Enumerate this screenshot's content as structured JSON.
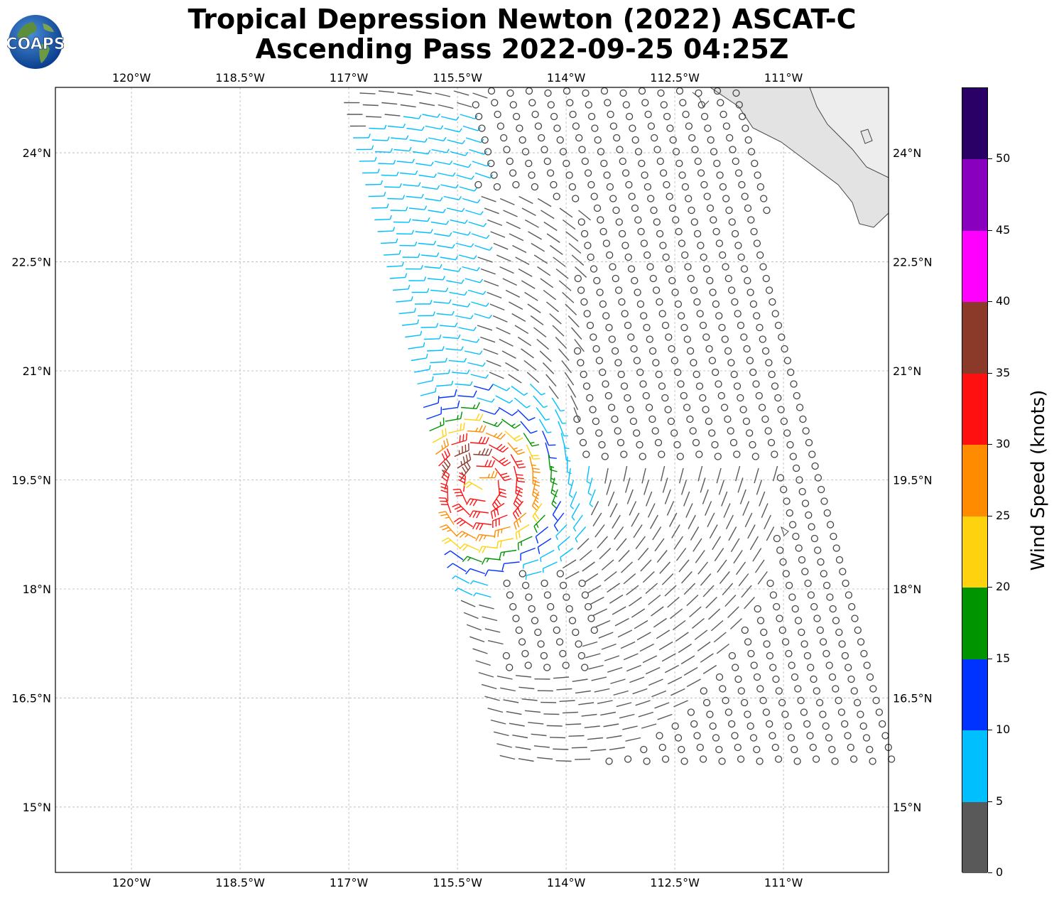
{
  "title": {
    "line1": "Tropical Depression Newton (2022) ASCAT-C",
    "line2": "Ascending Pass 2022-09-25 04:25Z"
  },
  "logo": {
    "text": "COAPS",
    "icon": "globe-logo-icon"
  },
  "map": {
    "lon_range": [
      -121.05,
      -109.55
    ],
    "lat_range": [
      14.1,
      24.9
    ],
    "lon_ticks": [
      {
        "value": -120,
        "label": "120°W"
      },
      {
        "value": -118.5,
        "label": "118.5°W"
      },
      {
        "value": -117,
        "label": "117°W"
      },
      {
        "value": -115.5,
        "label": "115.5°W"
      },
      {
        "value": -114,
        "label": "114°W"
      },
      {
        "value": -112.5,
        "label": "112.5°W"
      },
      {
        "value": -111,
        "label": "111°W"
      }
    ],
    "lat_ticks": [
      {
        "value": 24,
        "label": "24°N"
      },
      {
        "value": 22.5,
        "label": "22.5°N"
      },
      {
        "value": 21,
        "label": "21°N"
      },
      {
        "value": 19.5,
        "label": "19.5°N"
      },
      {
        "value": 18,
        "label": "18°N"
      },
      {
        "value": 16.5,
        "label": "16.5°N"
      },
      {
        "value": 15,
        "label": "15°N"
      }
    ],
    "gridlines": true,
    "storm_center": {
      "lon": -115.15,
      "lat": 19.4
    }
  },
  "colorbar": {
    "title": "Wind Speed (knots)",
    "tick_labels": [
      "0",
      "5",
      "10",
      "15",
      "20",
      "25",
      "30",
      "35",
      "40",
      "45",
      "50"
    ],
    "bins": [
      {
        "min": 0,
        "max": 5,
        "color": "#595959"
      },
      {
        "min": 5,
        "max": 10,
        "color": "#00bfff"
      },
      {
        "min": 10,
        "max": 15,
        "color": "#0033ff"
      },
      {
        "min": 15,
        "max": 20,
        "color": "#009400"
      },
      {
        "min": 20,
        "max": 25,
        "color": "#ffd20f"
      },
      {
        "min": 25,
        "max": 30,
        "color": "#ff8c00"
      },
      {
        "min": 30,
        "max": 35,
        "color": "#ff1010"
      },
      {
        "min": 35,
        "max": 40,
        "color": "#8b3a2a"
      },
      {
        "min": 40,
        "max": 45,
        "color": "#ff00ff"
      },
      {
        "min": 45,
        "max": 50,
        "color": "#8a00bf"
      },
      {
        "min": 50,
        "max": 55,
        "color": "#2a0066"
      }
    ]
  }
}
